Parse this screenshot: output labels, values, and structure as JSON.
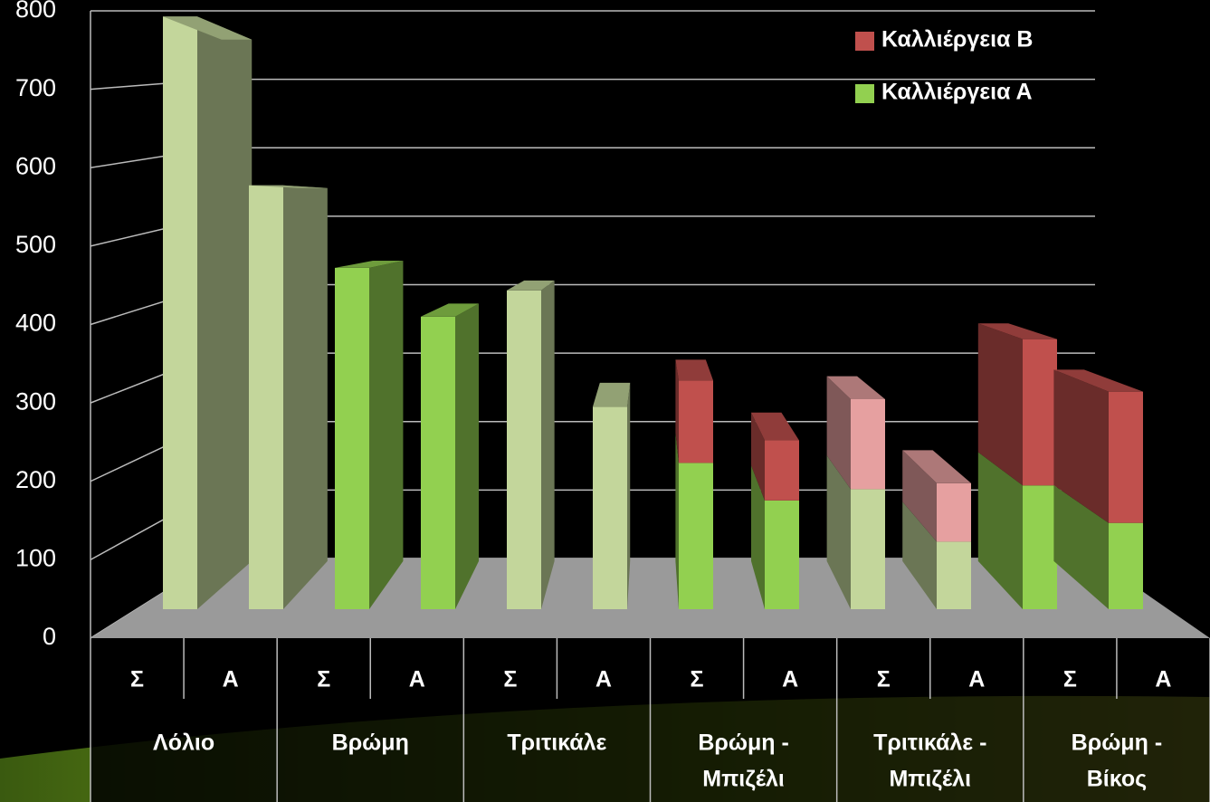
{
  "chart_data": {
    "type": "bar3d_stacked",
    "categories": [
      "Σ",
      "Α",
      "Σ",
      "Α",
      "Σ",
      "Α",
      "Σ",
      "Α",
      "Σ",
      "Α",
      "Σ",
      "Α"
    ],
    "groups": [
      {
        "lines": [
          "Λόλιο"
        ]
      },
      {
        "lines": [
          "Βρώμη"
        ]
      },
      {
        "lines": [
          "Τριτικάλε"
        ]
      },
      {
        "lines": [
          "Βρώμη -",
          "Μπιζέλι"
        ]
      },
      {
        "lines": [
          "Τριτικάλε -",
          "Μπιζέλι"
        ]
      },
      {
        "lines": [
          "Βρώμη -",
          "Βίκος"
        ]
      }
    ],
    "series": [
      {
        "name": "Καλλιέργεια Α",
        "color": "#92d050",
        "point_colors": [
          "#c3d69b",
          "#c3d69b",
          "#92d050",
          "#92d050",
          "#c3d69b",
          "#c3d69b",
          "#92d050",
          "#92d050",
          "#c3d69b",
          "#c3d69b",
          "#92d050",
          "#92d050"
        ],
        "values": [
          790,
          565,
          455,
          390,
          425,
          270,
          195,
          145,
          160,
          90,
          165,
          115
        ]
      },
      {
        "name": "Καλλιέργεια Β",
        "color": "#c0504d",
        "point_colors": [
          null,
          null,
          null,
          null,
          null,
          null,
          "#c0504d",
          "#c0504d",
          "#e6a0a0",
          "#e6a0a0",
          "#c0504d",
          "#c0504d"
        ],
        "values": [
          null,
          null,
          null,
          null,
          null,
          null,
          110,
          80,
          120,
          78,
          195,
          175
        ]
      }
    ],
    "legend_order": [
      1,
      0
    ],
    "ylim": [
      0,
      800
    ],
    "yticks": [
      0,
      100,
      200,
      300,
      400,
      500,
      600,
      700,
      800
    ],
    "grid": true
  }
}
